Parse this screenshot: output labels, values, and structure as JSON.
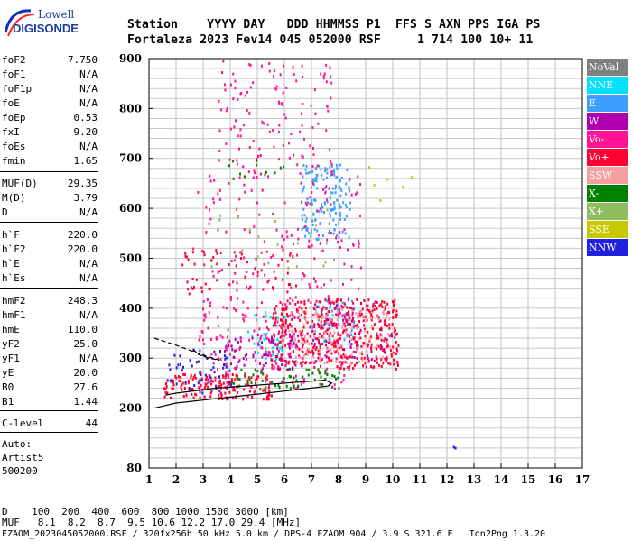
{
  "logo": {
    "line1": "Lowell",
    "line2": "DIGISONDE"
  },
  "header": {
    "row1": "Station    YYYY DAY   DDD HHMMSS P1  FFS S AXN PPS IGA PS",
    "row2": "Fortaleza 2023 Fev14 045 052000 RSF     1 714 100 10+ 11"
  },
  "params": [
    {
      "name": "foF2",
      "value": "7.750"
    },
    {
      "name": "foF1",
      "value": "N/A"
    },
    {
      "name": "foF1p",
      "value": "N/A"
    },
    {
      "name": "foE",
      "value": "N/A"
    },
    {
      "name": "foEp",
      "value": "0.53"
    },
    {
      "name": "fxI",
      "value": "9.20"
    },
    {
      "name": "foEs",
      "value": "N/A"
    },
    {
      "name": "fmin",
      "value": "1.65"
    },
    {
      "name": "MUF(D)",
      "value": "29.35"
    },
    {
      "name": "M(D)",
      "value": "3.79"
    },
    {
      "name": "D",
      "value": "N/A"
    },
    {
      "name": "h`F",
      "value": "220.0"
    },
    {
      "name": "h`F2",
      "value": "220.0"
    },
    {
      "name": "h`E",
      "value": "N/A"
    },
    {
      "name": "h`Es",
      "value": "N/A"
    },
    {
      "name": "hmF2",
      "value": "248.3"
    },
    {
      "name": "hmF1",
      "value": "N/A"
    },
    {
      "name": "hmE",
      "value": "110.0"
    },
    {
      "name": "yF2",
      "value": "25.0"
    },
    {
      "name": "yF1",
      "value": "N/A"
    },
    {
      "name": "yE",
      "value": "20.0"
    },
    {
      "name": "B0",
      "value": "27.6"
    },
    {
      "name": "B1",
      "value": "1.44"
    },
    {
      "name": "C-level",
      "value": "44"
    }
  ],
  "autoscale": {
    "line1": "Auto:",
    "line2": "Artist5",
    "line3": "500200"
  },
  "legend": [
    {
      "label": "NoVal",
      "color": "#808080"
    },
    {
      "label": "NNE",
      "color": "#00e0ff"
    },
    {
      "label": "E",
      "color": "#3f9fff"
    },
    {
      "label": "W",
      "color": "#b000b0"
    },
    {
      "label": "Vo-",
      "color": "#ff1493"
    },
    {
      "label": "Vo+",
      "color": "#ff0030"
    },
    {
      "label": "SSW",
      "color": "#f4a0a0"
    },
    {
      "label": "X-",
      "color": "#008000"
    },
    {
      "label": "X+",
      "color": "#8fbc5f"
    },
    {
      "label": "SSE",
      "color": "#c8c800"
    },
    {
      "label": "NNW",
      "color": "#2020e0"
    }
  ],
  "footer": {
    "line1": "D    100  200  400  600  800 1000 1500 3000 [km]",
    "line2": "MUF   8.1  8.2  8.7  9.5 10.6 12.2 17.0 29.4 [MHz]",
    "line3": "FZAOM_2023045052000.RSF / 320fx256h 50 kHz 5.0 km / DPS-4 FZAOM 904 / 3.9 S 321.6 E   Ion2Png 1.3.20"
  },
  "chart_data": {
    "type": "scatter",
    "xlim": [
      1,
      17
    ],
    "ylim": [
      80,
      900
    ],
    "x_ticks": [
      "1",
      "2",
      "3",
      "4",
      "5",
      "6",
      "7",
      "8",
      "9",
      "10",
      "11",
      "12",
      "13",
      "14",
      "15",
      "16",
      "17"
    ],
    "y_ticks": [
      "900",
      "800",
      "700",
      "600",
      "500",
      "400",
      "300",
      "200",
      "80"
    ],
    "y_tick_values": [
      900,
      800,
      700,
      600,
      500,
      400,
      300,
      200,
      80
    ],
    "grid": true,
    "clusters": [
      {
        "name": "NNE",
        "color": "#00e0ff",
        "x": [
          4.6,
          6.2
        ],
        "y": [
          300,
          400
        ],
        "n": 40
      },
      {
        "name": "E",
        "color": "#3f9fff",
        "x": [
          6.6,
          8.4
        ],
        "y": [
          540,
          690
        ],
        "n": 160
      },
      {
        "name": "E",
        "color": "#3f9fff",
        "x": [
          7.0,
          8.6
        ],
        "y": [
          330,
          420
        ],
        "n": 60
      },
      {
        "name": "W",
        "color": "#b000b0",
        "x": [
          3.5,
          6.5
        ],
        "y": [
          280,
          350
        ],
        "n": 90
      },
      {
        "name": "W",
        "color": "#b000b0",
        "x": [
          7.0,
          10.0
        ],
        "y": [
          300,
          420
        ],
        "n": 80
      },
      {
        "name": "Vo-",
        "color": "#ff1493",
        "x": [
          2.8,
          8.5
        ],
        "y": [
          240,
          430
        ],
        "n": 220
      },
      {
        "name": "Vo-",
        "color": "#ff1493",
        "x": [
          2.5,
          8.8
        ],
        "y": [
          440,
          700
        ],
        "n": 160
      },
      {
        "name": "Vo-",
        "color": "#ff1493",
        "x": [
          3.5,
          7.8
        ],
        "y": [
          700,
          900
        ],
        "n": 110
      },
      {
        "name": "Vo+",
        "color": "#ff0030",
        "x": [
          5.5,
          10.2
        ],
        "y": [
          280,
          420
        ],
        "n": 420
      },
      {
        "name": "Vo+",
        "color": "#ff0030",
        "x": [
          1.5,
          5.5
        ],
        "y": [
          220,
          270
        ],
        "n": 160
      },
      {
        "name": "Vo+",
        "color": "#ff0030",
        "x": [
          2.2,
          6.5
        ],
        "y": [
          430,
          520
        ],
        "n": 60
      },
      {
        "name": "SSW",
        "color": "#f4a0a0",
        "x": [
          6.0,
          10.0
        ],
        "y": [
          290,
          400
        ],
        "n": 130
      },
      {
        "name": "X-",
        "color": "#008000",
        "x": [
          4.0,
          8.0
        ],
        "y": [
          240,
          280
        ],
        "n": 60
      },
      {
        "name": "X-",
        "color": "#008000",
        "x": [
          3.8,
          6.0
        ],
        "y": [
          660,
          700
        ],
        "n": 12
      },
      {
        "name": "X+",
        "color": "#8fbc5f",
        "x": [
          3.0,
          8.0
        ],
        "y": [
          480,
          600
        ],
        "n": 22
      },
      {
        "name": "SSE",
        "color": "#c8c800",
        "x": [
          8.4,
          11.2
        ],
        "y": [
          600,
          690
        ],
        "n": 6
      },
      {
        "name": "NNW",
        "color": "#2020e0",
        "x": [
          1.6,
          4.0
        ],
        "y": [
          230,
          320
        ],
        "n": 50
      },
      {
        "name": "NNW",
        "color": "#2020e0",
        "x": [
          12.2,
          12.4
        ],
        "y": [
          120,
          125
        ],
        "n": 2
      }
    ],
    "profile_solid": {
      "x": [
        1.2,
        2.0,
        3.0,
        4.0,
        5.0,
        6.0,
        7.0,
        7.6,
        7.75,
        7.5,
        6.5,
        5.0,
        3.5,
        2.0,
        1.6
      ],
      "y": [
        200,
        210,
        216,
        222,
        228,
        234,
        240,
        244,
        250,
        256,
        252,
        246,
        240,
        230,
        226
      ]
    },
    "profile_dashed": {
      "x": [
        1.2,
        2.0,
        3.0,
        3.6,
        3.2,
        2.8,
        2.6
      ],
      "y": [
        340,
        326,
        306,
        296,
        300,
        308,
        320
      ]
    }
  }
}
